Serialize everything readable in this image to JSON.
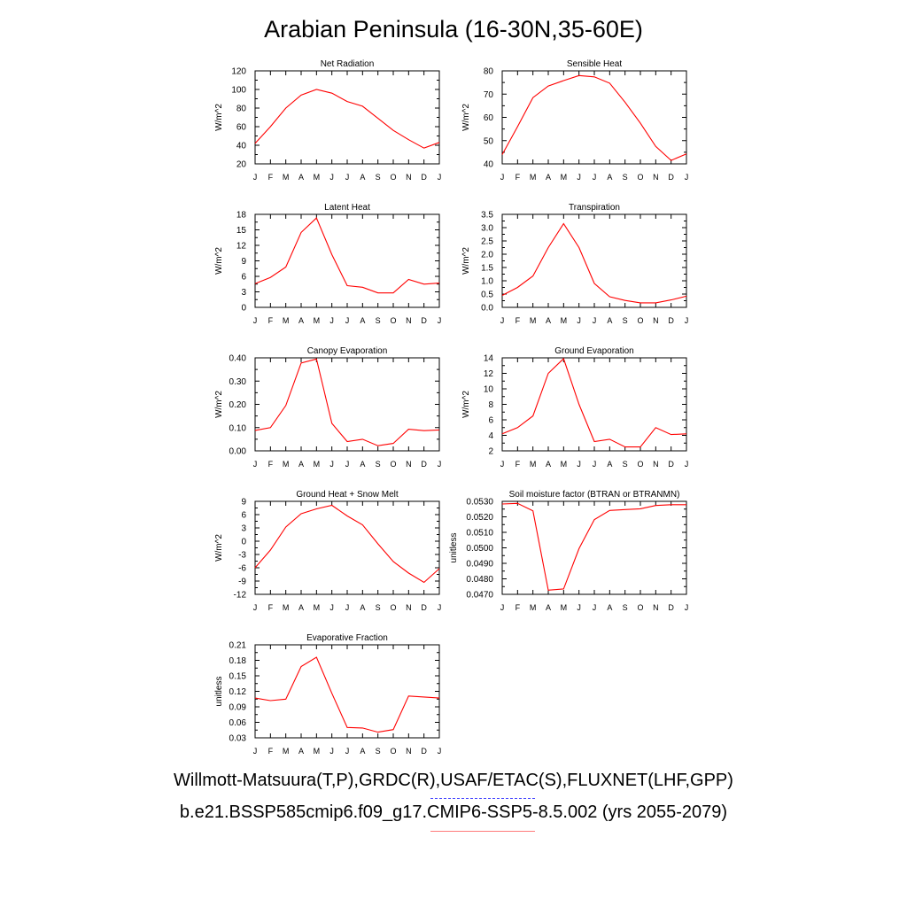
{
  "figure": {
    "title": "Arabian Peninsula (16-30N,35-60E)",
    "legend": [
      {
        "label": "Willmott-Matsuura(T,P),GRDC(R),USAF/ETAC(S),FLUXNET(LHF,GPP)",
        "color": "#4b4bff",
        "style": "dashed"
      },
      {
        "label": "b.e21.BSSP585cmip6.f09_g17.CMIP6-SSP5-8.5.002 (yrs 2055-2079)",
        "color": "#ff0000",
        "style": "solid"
      }
    ]
  },
  "chart_data": [
    {
      "type": "line",
      "title": "Net Radiation",
      "ylabel": "W/m^2",
      "x": [
        "J",
        "F",
        "M",
        "A",
        "M",
        "J",
        "J",
        "A",
        "S",
        "O",
        "N",
        "D",
        "J"
      ],
      "ylim": [
        20,
        120
      ],
      "yticks": [
        "20",
        "40",
        "60",
        "80",
        "100",
        "120"
      ],
      "series": [
        {
          "color": "#ff0000",
          "values": [
            42,
            60,
            80,
            94,
            100,
            96,
            87,
            82,
            69,
            56,
            46,
            37,
            43
          ]
        }
      ]
    },
    {
      "type": "line",
      "title": "Sensible Heat",
      "ylabel": "W/m^2",
      "x": [
        "J",
        "F",
        "M",
        "A",
        "M",
        "J",
        "J",
        "A",
        "S",
        "O",
        "N",
        "D",
        "J"
      ],
      "ylim": [
        40,
        80
      ],
      "yticks": [
        "40",
        "50",
        "60",
        "70",
        "80"
      ],
      "series": [
        {
          "color": "#ff0000",
          "values": [
            44,
            56,
            68.5,
            73.5,
            75.8,
            78,
            77.4,
            74.7,
            66.5,
            57.5,
            47.5,
            41.5,
            44.3
          ]
        }
      ]
    },
    {
      "type": "line",
      "title": "Latent Heat",
      "ylabel": "W/m^2",
      "x": [
        "J",
        "F",
        "M",
        "A",
        "M",
        "J",
        "J",
        "A",
        "S",
        "O",
        "N",
        "D",
        "J"
      ],
      "ylim": [
        0,
        18
      ],
      "yticks": [
        "0",
        "3",
        "6",
        "9",
        "12",
        "15",
        "18"
      ],
      "series": [
        {
          "color": "#ff0000",
          "values": [
            4.6,
            5.8,
            7.8,
            14.5,
            17.3,
            10.2,
            4.2,
            3.9,
            2.8,
            2.8,
            5.4,
            4.5,
            4.7
          ]
        }
      ]
    },
    {
      "type": "line",
      "title": "Transpiration",
      "ylabel": "W/m^2",
      "x": [
        "J",
        "F",
        "M",
        "A",
        "M",
        "J",
        "J",
        "A",
        "S",
        "O",
        "N",
        "D",
        "J"
      ],
      "ylim": [
        0,
        3.5
      ],
      "yticks": [
        "0.0",
        "0.5",
        "1.0",
        "1.5",
        "2.0",
        "2.5",
        "3.0",
        "3.5"
      ],
      "series": [
        {
          "color": "#ff0000",
          "values": [
            0.45,
            0.75,
            1.18,
            2.25,
            3.15,
            2.25,
            0.9,
            0.4,
            0.26,
            0.17,
            0.17,
            0.28,
            0.42
          ]
        }
      ]
    },
    {
      "type": "line",
      "title": "Canopy Evaporation",
      "ylabel": "W/m^2",
      "x": [
        "J",
        "F",
        "M",
        "A",
        "M",
        "J",
        "J",
        "A",
        "S",
        "O",
        "N",
        "D",
        "J"
      ],
      "ylim": [
        0,
        0.4
      ],
      "yticks": [
        "0.00",
        "0.10",
        "0.20",
        "0.30",
        "0.40"
      ],
      "series": [
        {
          "color": "#ff0000",
          "values": [
            0.088,
            0.1,
            0.195,
            0.378,
            0.395,
            0.118,
            0.04,
            0.05,
            0.022,
            0.032,
            0.093,
            0.087,
            0.09
          ]
        }
      ]
    },
    {
      "type": "line",
      "title": "Ground Evaporation",
      "ylabel": "W/m^2",
      "x": [
        "J",
        "F",
        "M",
        "A",
        "M",
        "J",
        "J",
        "A",
        "S",
        "O",
        "N",
        "D",
        "J"
      ],
      "ylim": [
        2,
        14
      ],
      "yticks": [
        "2",
        "4",
        "6",
        "8",
        "10",
        "12",
        "14"
      ],
      "series": [
        {
          "color": "#ff0000",
          "values": [
            4.2,
            5,
            6.5,
            12,
            13.9,
            8,
            3.2,
            3.5,
            2.5,
            2.5,
            5,
            4.1,
            4.2
          ]
        }
      ]
    },
    {
      "type": "line",
      "title": "Ground Heat + Snow Melt",
      "ylabel": "W/m^2",
      "x": [
        "J",
        "F",
        "M",
        "A",
        "M",
        "J",
        "J",
        "A",
        "S",
        "O",
        "N",
        "D",
        "J"
      ],
      "ylim": [
        -12,
        9
      ],
      "yticks": [
        "-12",
        "-9",
        "-6",
        "-3",
        "0",
        "3",
        "6",
        "9"
      ],
      "series": [
        {
          "color": "#ff0000",
          "values": [
            -6,
            -2,
            3.2,
            6.2,
            7.3,
            8.1,
            5.7,
            3.7,
            -0.6,
            -4.6,
            -7.2,
            -9.3,
            -6.2
          ]
        }
      ]
    },
    {
      "type": "line",
      "title": "Soil moisture factor (BTRAN or BTRANMN)",
      "ylabel": "unitless",
      "x": [
        "J",
        "F",
        "M",
        "A",
        "M",
        "J",
        "J",
        "A",
        "S",
        "O",
        "N",
        "D",
        "J"
      ],
      "ylim": [
        0.047,
        0.053
      ],
      "yticks": [
        "0.0470",
        "0.0480",
        "0.0490",
        "0.0500",
        "0.0510",
        "0.0520",
        "0.0530"
      ],
      "series": [
        {
          "color": "#ff0000",
          "values": [
            0.05283,
            0.05287,
            0.05238,
            0.04727,
            0.04735,
            0.04995,
            0.05182,
            0.05241,
            0.05247,
            0.05252,
            0.05273,
            0.05278,
            0.05278
          ]
        }
      ]
    },
    {
      "type": "line",
      "title": "Evaporative Fraction",
      "ylabel": "unitless",
      "x": [
        "J",
        "F",
        "M",
        "A",
        "M",
        "J",
        "J",
        "A",
        "S",
        "O",
        "N",
        "D",
        "J"
      ],
      "ylim": [
        0.03,
        0.21
      ],
      "yticks": [
        "0.03",
        "0.06",
        "0.09",
        "0.12",
        "0.15",
        "0.18",
        "0.21"
      ],
      "series": [
        {
          "color": "#ff0000",
          "values": [
            0.107,
            0.102,
            0.105,
            0.168,
            0.186,
            0.116,
            0.05,
            0.049,
            0.041,
            0.046,
            0.111,
            0.109,
            0.107
          ]
        }
      ]
    }
  ]
}
